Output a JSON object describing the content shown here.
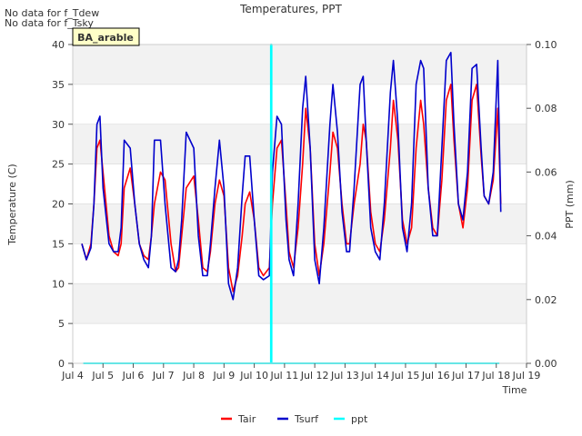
{
  "notes": [
    "No data for f_Tdew",
    "No data for f_Tsky"
  ],
  "chart_data": {
    "type": "line",
    "title": "Temperatures, PPT",
    "xlabel": "Time",
    "ylabel": "Temperature (C)",
    "y2label": "PPT (mm)",
    "site_badge": "BA_arable",
    "xlim": [
      4.0,
      19.0
    ],
    "ylim": [
      0,
      40
    ],
    "y2lim": [
      0.0,
      0.1
    ],
    "x_ticks": [
      {
        "value": 4,
        "label": "Jul 4"
      },
      {
        "value": 5,
        "label": "Jul 5"
      },
      {
        "value": 6,
        "label": "Jul 6"
      },
      {
        "value": 7,
        "label": "Jul 7"
      },
      {
        "value": 8,
        "label": "Jul 8"
      },
      {
        "value": 9,
        "label": "Jul 9"
      },
      {
        "value": 10,
        "label": "Jul 10"
      },
      {
        "value": 11,
        "label": "Jul 11"
      },
      {
        "value": 12,
        "label": "Jul 12"
      },
      {
        "value": 13,
        "label": "Jul 13"
      },
      {
        "value": 14,
        "label": "Jul 14"
      },
      {
        "value": 15,
        "label": "Jul 15"
      },
      {
        "value": 16,
        "label": "Jul 16"
      },
      {
        "value": 17,
        "label": "Jul 17"
      },
      {
        "value": 18,
        "label": "Jul 18"
      },
      {
        "value": 19,
        "label": "Jul 19"
      }
    ],
    "y_ticks": [
      0,
      5,
      10,
      15,
      20,
      25,
      30,
      35,
      40
    ],
    "y2_ticks": [
      "0.00",
      "0.02",
      "0.04",
      "0.06",
      "0.08",
      "0.10"
    ],
    "grid": "horizontal bands",
    "legend": "bottom-center",
    "series": [
      {
        "name": "Tair",
        "color": "#ff0000",
        "axis": "left",
        "x": [
          4.3,
          4.45,
          4.6,
          4.7,
          4.8,
          4.9,
          5.0,
          5.2,
          5.35,
          5.5,
          5.6,
          5.7,
          5.9,
          6.05,
          6.2,
          6.35,
          6.5,
          6.6,
          6.7,
          6.9,
          7.05,
          7.25,
          7.4,
          7.5,
          7.6,
          7.75,
          8.0,
          8.15,
          8.3,
          8.45,
          8.55,
          8.7,
          8.85,
          9.0,
          9.15,
          9.3,
          9.45,
          9.6,
          9.7,
          9.85,
          10.0,
          10.15,
          10.3,
          10.5,
          10.6,
          10.75,
          10.9,
          11.05,
          11.15,
          11.3,
          11.45,
          11.6,
          11.7,
          11.85,
          12.0,
          12.15,
          12.3,
          12.5,
          12.6,
          12.75,
          12.9,
          13.05,
          13.15,
          13.3,
          13.5,
          13.6,
          13.7,
          13.85,
          14.0,
          14.15,
          14.3,
          14.5,
          14.6,
          14.75,
          14.9,
          15.05,
          15.2,
          15.35,
          15.5,
          15.6,
          15.75,
          15.9,
          16.05,
          16.2,
          16.35,
          16.5,
          16.6,
          16.75,
          16.9,
          17.05,
          17.2,
          17.35,
          17.5,
          17.6,
          17.75,
          17.9,
          18.05,
          18.15
        ],
        "y": [
          15,
          13,
          15,
          20,
          27,
          28,
          24,
          16,
          14,
          13.5,
          15,
          22,
          24.5,
          20,
          15,
          13.5,
          13,
          16,
          20,
          24,
          23,
          15,
          11.5,
          12,
          16,
          22,
          23.5,
          18,
          12,
          11.5,
          14,
          20,
          23,
          21,
          12,
          9,
          11,
          16,
          20,
          21.5,
          18,
          12,
          11,
          12,
          20,
          27,
          28,
          20,
          14,
          12,
          17,
          25,
          32,
          27,
          15,
          11,
          15,
          24,
          29,
          27,
          20,
          15,
          15,
          20,
          25,
          30,
          28,
          19,
          15,
          14,
          18,
          27,
          33,
          28,
          18,
          15,
          17,
          27,
          33,
          30,
          22,
          17,
          16,
          23,
          33,
          35,
          28,
          20,
          17,
          22,
          33,
          35,
          26,
          21,
          20,
          23,
          32,
          20
        ]
      },
      {
        "name": "Tsurf",
        "color": "#0000cc",
        "axis": "left",
        "x": [
          4.3,
          4.45,
          4.6,
          4.7,
          4.8,
          4.9,
          5.0,
          5.2,
          5.35,
          5.5,
          5.6,
          5.7,
          5.9,
          6.05,
          6.2,
          6.35,
          6.5,
          6.6,
          6.7,
          6.9,
          7.05,
          7.25,
          7.4,
          7.5,
          7.6,
          7.75,
          8.0,
          8.15,
          8.3,
          8.45,
          8.55,
          8.7,
          8.85,
          9.0,
          9.15,
          9.3,
          9.45,
          9.6,
          9.7,
          9.85,
          10.0,
          10.15,
          10.3,
          10.5,
          10.6,
          10.75,
          10.9,
          11.05,
          11.15,
          11.3,
          11.45,
          11.6,
          11.7,
          11.85,
          12.0,
          12.15,
          12.3,
          12.5,
          12.6,
          12.75,
          12.9,
          13.05,
          13.15,
          13.3,
          13.5,
          13.6,
          13.7,
          13.85,
          14.0,
          14.15,
          14.3,
          14.5,
          14.6,
          14.75,
          14.9,
          15.05,
          15.2,
          15.35,
          15.5,
          15.6,
          15.75,
          15.9,
          16.05,
          16.2,
          16.35,
          16.5,
          16.6,
          16.75,
          16.9,
          17.05,
          17.2,
          17.35,
          17.5,
          17.6,
          17.75,
          17.9,
          18.05,
          18.15
        ],
        "y": [
          15,
          13,
          14.5,
          20,
          30,
          31,
          22,
          15,
          14,
          14,
          17,
          28,
          27,
          20,
          15,
          13,
          12,
          16,
          28,
          28,
          20,
          12,
          11.5,
          13,
          18,
          29,
          27,
          16,
          11,
          11,
          15,
          22,
          28,
          22,
          10,
          8,
          12,
          21,
          26,
          26,
          18,
          11,
          10.5,
          11,
          24,
          31,
          30,
          18,
          13,
          11,
          20,
          32,
          36,
          27,
          13,
          10,
          17,
          30,
          35,
          29,
          19,
          14,
          14,
          22,
          35,
          36,
          28,
          17,
          14,
          13,
          20,
          34,
          38,
          30,
          17,
          14,
          20,
          35,
          38,
          37,
          22,
          16,
          16,
          27,
          38,
          39,
          30,
          20,
          18,
          24,
          37,
          37.5,
          27,
          21,
          20,
          24,
          38,
          19
        ]
      },
      {
        "name": "ppt",
        "color": "#00ffff",
        "axis": "right",
        "x": [
          4.35,
          10.55,
          10.55,
          10.57,
          10.57,
          18.1
        ],
        "y": [
          0.0,
          0.0,
          0.1,
          0.1,
          0.0,
          0.0
        ]
      }
    ]
  }
}
